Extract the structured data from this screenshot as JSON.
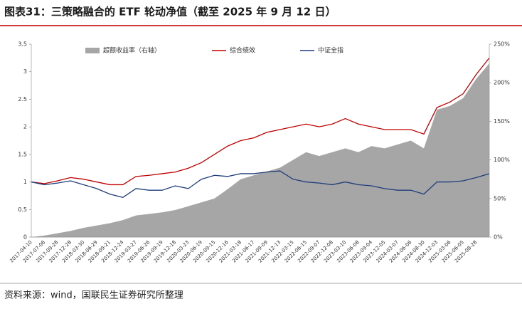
{
  "header": {
    "title": "图表31：三策略融合的 ETF 轮动净值（截至 2025 年 9 月 12 日）"
  },
  "chart_data": {
    "type": "line-area",
    "categories": [
      "2017-04-10",
      "2017-07-06",
      "2017-09-28",
      "2017-12-28",
      "2018-03-30",
      "2018-06-29",
      "2018-09-21",
      "2018-12-24",
      "2019-03-27",
      "2019-06-26",
      "2019-09-19",
      "2019-12-18",
      "2020-03-23",
      "2020-06-19",
      "2020-09-15",
      "2020-12-16",
      "2021-03-18",
      "2021-06-17",
      "2021-09-09",
      "2021-12-13",
      "2022-03-15",
      "2022-06-15",
      "2022-09-07",
      "2022-12-08",
      "2023-03-10",
      "2023-06-08",
      "2023-09-04",
      "2023-12-05",
      "2024-03-07",
      "2024-06-06",
      "2024-08-30",
      "2024-12-03",
      "2025-03-06",
      "2025-06-05",
      "2025-08-28",
      null
    ],
    "series": [
      {
        "name": "超额收益率（右轴）",
        "color": "#a6a6a6",
        "axis": "y2",
        "kind": "area",
        "values": [
          0,
          2,
          5,
          8,
          12,
          15,
          18,
          22,
          28,
          30,
          32,
          35,
          40,
          45,
          50,
          62,
          75,
          80,
          85,
          90,
          100,
          110,
          105,
          110,
          115,
          110,
          118,
          115,
          120,
          125,
          115,
          165,
          170,
          180,
          205,
          225
        ]
      },
      {
        "name": "综合绩效",
        "color": "#c00000",
        "kind": "line",
        "values": [
          1.0,
          0.97,
          1.02,
          1.08,
          1.05,
          1.0,
          0.95,
          0.95,
          1.1,
          1.12,
          1.15,
          1.18,
          1.25,
          1.35,
          1.5,
          1.65,
          1.75,
          1.8,
          1.9,
          1.95,
          2.0,
          2.05,
          2.0,
          2.05,
          2.15,
          2.05,
          2.0,
          1.95,
          1.95,
          1.95,
          1.87,
          2.35,
          2.45,
          2.6,
          2.95,
          3.25
        ]
      },
      {
        "name": "中证全指",
        "color": "#1f3d7a",
        "kind": "line",
        "values": [
          1.0,
          0.95,
          0.98,
          1.02,
          0.95,
          0.88,
          0.78,
          0.72,
          0.88,
          0.85,
          0.85,
          0.93,
          0.88,
          1.05,
          1.12,
          1.1,
          1.15,
          1.15,
          1.18,
          1.2,
          1.05,
          1.0,
          0.98,
          0.95,
          1.0,
          0.95,
          0.93,
          0.88,
          0.85,
          0.85,
          0.78,
          1.0,
          1.0,
          1.02,
          1.08,
          1.15
        ]
      }
    ],
    "ylim": [
      0,
      3.5
    ],
    "yticks": [
      0,
      0.5,
      1,
      1.5,
      2,
      2.5,
      3,
      3.5
    ],
    "y2lim": [
      0,
      250
    ],
    "y2ticks": [
      {
        "value": 0,
        "label": "0%"
      },
      {
        "value": 50,
        "label": "50%"
      },
      {
        "value": 100,
        "label": "100%"
      },
      {
        "value": 150,
        "label": "150%"
      },
      {
        "value": 200,
        "label": "200%"
      },
      {
        "value": 250,
        "label": "250%"
      }
    ]
  },
  "footer": {
    "source": "资料来源：wind，国联民生证券研究所整理"
  }
}
